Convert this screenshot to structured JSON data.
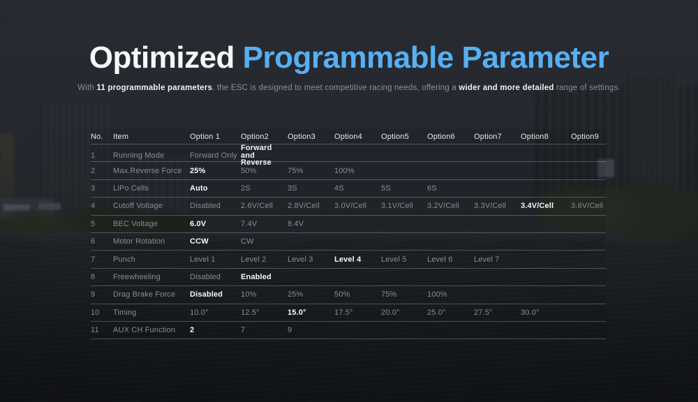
{
  "title": {
    "white": "Optimized ",
    "blue": "Programmable Parameter"
  },
  "subtitle": {
    "segments": [
      {
        "text": "With ",
        "bold": false
      },
      {
        "text": "11 programmable parameters",
        "bold": true
      },
      {
        "text": ", the ESC is designed to meet competitive racing needs, offering a ",
        "bold": false
      },
      {
        "text": "wider and more detailed",
        "bold": true
      },
      {
        "text": " range of settings.",
        "bold": false
      }
    ]
  },
  "table": {
    "headers": [
      "No.",
      "Item",
      "Option 1",
      "Option2",
      "Option3",
      "Option4",
      "Option5",
      "Option6",
      "Option7",
      "Option8",
      "Option9"
    ],
    "rows": [
      {
        "no": "1",
        "item": "Running Mode",
        "options": [
          {
            "text": "Forward Only",
            "selected": false
          },
          {
            "text": "Forward and Reverse",
            "lines": [
              "Forward",
              "and Reverse"
            ],
            "selected": true
          }
        ]
      },
      {
        "no": "2",
        "item": "Max.Reverse Force",
        "options": [
          {
            "text": "25%",
            "selected": true
          },
          {
            "text": "50%"
          },
          {
            "text": "75%"
          },
          {
            "text": "100%"
          }
        ]
      },
      {
        "no": "3",
        "item": "LiPo Cells",
        "options": [
          {
            "text": "Auto",
            "selected": true
          },
          {
            "text": "2S"
          },
          {
            "text": "3S"
          },
          {
            "text": "4S"
          },
          {
            "text": "5S"
          },
          {
            "text": "6S"
          }
        ]
      },
      {
        "no": "4",
        "item": "Cutoff Voltage",
        "options": [
          {
            "text": "Disabled"
          },
          {
            "text": "2.6V/Cell"
          },
          {
            "text": "2.8V/Cell"
          },
          {
            "text": "3.0V/Cell"
          },
          {
            "text": "3.1V/Cell"
          },
          {
            "text": "3.2V/Cell"
          },
          {
            "text": "3.3V/Cell"
          },
          {
            "text": "3.4V/Cell",
            "selected": true
          },
          {
            "text": "3.6V/Cell"
          }
        ]
      },
      {
        "no": "5",
        "item": "BEC Voltage",
        "options": [
          {
            "text": "6.0V",
            "selected": true
          },
          {
            "text": "7.4V"
          },
          {
            "text": "8.4V"
          }
        ]
      },
      {
        "no": "6",
        "item": "Motor Rotation",
        "options": [
          {
            "text": "CCW",
            "selected": true
          },
          {
            "text": "CW"
          }
        ]
      },
      {
        "no": "7",
        "item": "Punch",
        "options": [
          {
            "text": "Level 1"
          },
          {
            "text": "Level 2"
          },
          {
            "text": "Level 3"
          },
          {
            "text": "Level 4",
            "selected": true
          },
          {
            "text": "Level 5"
          },
          {
            "text": "Level 6"
          },
          {
            "text": "Level 7"
          }
        ]
      },
      {
        "no": "8",
        "item": "Freewheeling",
        "options": [
          {
            "text": "Disabled"
          },
          {
            "text": "Enabled",
            "selected": true
          }
        ]
      },
      {
        "no": "9",
        "item": "Drag Brake Force",
        "options": [
          {
            "text": "Disabled",
            "selected": true
          },
          {
            "text": "10%"
          },
          {
            "text": "25%"
          },
          {
            "text": "50%"
          },
          {
            "text": "75%"
          },
          {
            "text": "100%"
          }
        ]
      },
      {
        "no": "10",
        "item": "Timing",
        "options": [
          {
            "text": "10.0°"
          },
          {
            "text": "12.5°"
          },
          {
            "text": "15.0°",
            "selected": true
          },
          {
            "text": "17.5°"
          },
          {
            "text": "20.0°"
          },
          {
            "text": "25.0°"
          },
          {
            "text": "27.5°"
          },
          {
            "text": "30.0°"
          }
        ]
      },
      {
        "no": "11",
        "item": "AUX CH Function",
        "options": [
          {
            "text": "2",
            "selected": true
          },
          {
            "text": "7"
          },
          {
            "text": "9"
          }
        ]
      }
    ]
  },
  "colors": {
    "accent_blue": "#58aff2",
    "background": "#23272d",
    "text_gray": "#878e95",
    "selected_white": "#f5f7f9",
    "divider": "rgba(255,255,255,0.24)"
  }
}
